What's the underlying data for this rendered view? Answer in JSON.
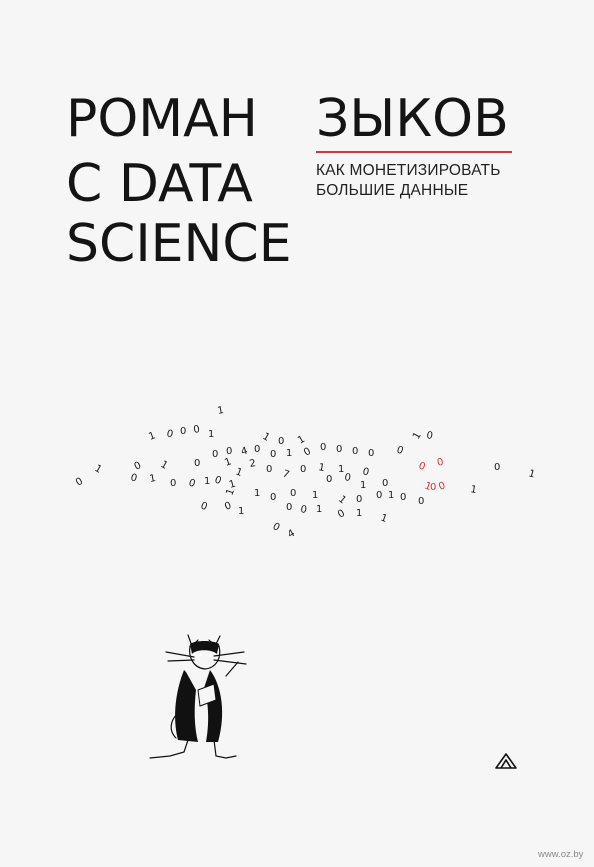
{
  "cover": {
    "author_first": "РОМАН",
    "author_last": "ЗЫКОВ",
    "title_line_1": "С DATA",
    "title_line_2": "SCIENCE",
    "subtitle_line_1": "КАК МОНЕТИЗИРОВАТЬ",
    "subtitle_line_2": "БОЛЬШИЕ ДАННЫЕ",
    "accent_color": "#d0383b",
    "illustration": "cat-with-flying-binary-digits",
    "publisher_logo_icon": "piter-logo-icon"
  },
  "watermark": "www.oz.by"
}
